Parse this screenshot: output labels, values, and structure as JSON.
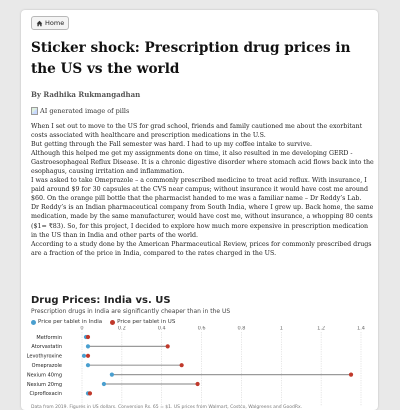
{
  "nav": {
    "home_label": "Home",
    "home_icon": "house-icon"
  },
  "post": {
    "title": "Sticker shock: Prescription drug prices in the US vs the world",
    "byline": "By Radhika Rukmangadhan",
    "image_alt": "AI generated image of pills",
    "paragraphs": [
      "When I set out to move to the US for grad school, friends and family cautioned me about the exorbitant costs associated with healthcare and prescription medications in the U.S.",
      "But getting through the Fall semester was hard. I had to up my coffee intake to survive.",
      "Although this helped me get my assignments done on time, it also resulted in me developing GERD - Gastroesophageal Reflux Disease. It is a chronic digestive disorder where stomach acid flows back into the esophagus, causing irritation and inflammation.",
      "I was asked to take Omeprazole – a commonly prescribed medicine to treat acid reflux. With insurance, I paid around $9 for 30 capsules at the CVS near campus; without insurance it would have cost me around $60. On the orange pill bottle that the pharmacist handed to me was a familiar name – Dr Reddy’s Lab.",
      "Dr Reddy’s is an Indian pharmaceutical company from South India, where I grew up. Back home, the same medication, made by the same manufacturer, would have cost me, without insurance, a whopping 80 cents ($1= ₹83). So, for this project, I decided to explore how much more expensive in prescription medication in the US than in India and other parts of the world.",
      "According to a study done by the American Pharmaceutical Review, prices for commonly prescribed drugs are a fraction of the price in India, compared to the rates charged in the US."
    ]
  },
  "chart_data": {
    "type": "dumbbell",
    "title": "Drug Prices: India vs. US",
    "subtitle": "Prescription drugs in India are significantly cheaper than in the US",
    "xlim": [
      0,
      1.4
    ],
    "x_ticks": [
      "0",
      "0.2",
      "0.4",
      "0.6",
      "0.8",
      "1",
      "1.2",
      "1.4"
    ],
    "grid": true,
    "legend_position": "top-left",
    "categories": [
      "Metformin",
      "Atorvastatin",
      "Levothyroxine",
      "Omeprazole",
      "Nexium 40mg",
      "Nexium 20mg",
      "Ciprofloxacin"
    ],
    "series": [
      {
        "name": "Price per tablet in India",
        "color": "#4a9fcf",
        "values": [
          0.02,
          0.03,
          0.01,
          0.03,
          0.15,
          0.11,
          0.03
        ]
      },
      {
        "name": "Price per tablet in US",
        "color": "#c0392b",
        "values": [
          0.03,
          0.43,
          0.03,
          0.5,
          1.35,
          0.58,
          0.04
        ]
      }
    ],
    "source": "Data from 2019. Figures in US dollars. Conversion Rs. 65 = $1. US prices from Walmart, Costco, Walgreens and GoodRx."
  }
}
